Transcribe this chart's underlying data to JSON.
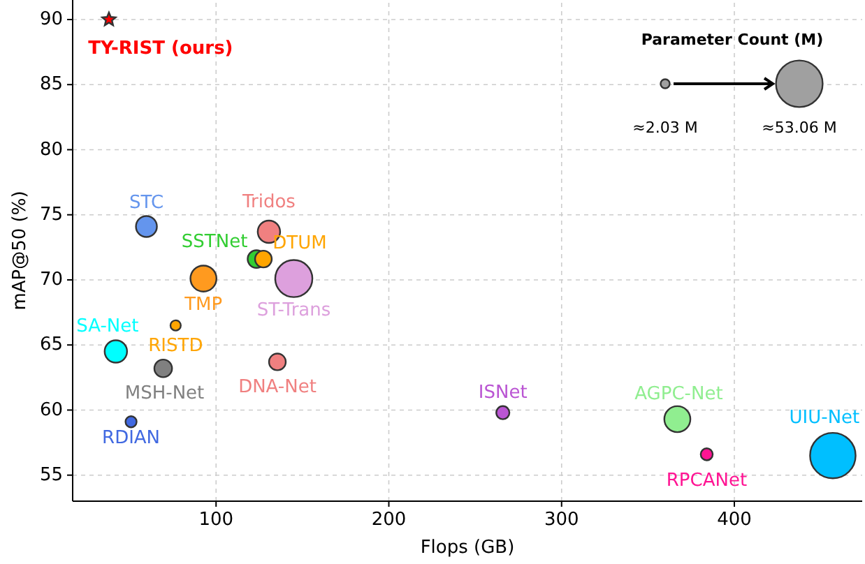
{
  "chart_data": {
    "type": "bubble",
    "xlabel": "Flops (GB)",
    "ylabel": "mAP@50 (%)",
    "legend_title": "Parameter Count (M)",
    "grid": true,
    "marker": "circle",
    "xlim": [
      17,
      474
    ],
    "xticks": [
      100,
      200,
      300,
      400
    ],
    "ylim": [
      53,
      91.5
    ],
    "yticks": [
      55,
      60,
      65,
      70,
      75,
      80,
      85,
      90
    ],
    "size_legend": [
      {
        "value": 2.03,
        "label": "≈2.03 M"
      },
      {
        "value": 53.06,
        "label": "≈53.06 M"
      }
    ],
    "series": [
      {
        "name": "TY-RIST (ours)",
        "color": "#ff0000",
        "marker": "star",
        "x": [
          38
        ],
        "values": [
          90
        ],
        "sizes": [
          2.03
        ]
      },
      {
        "name": "STC",
        "color": "#6495ed",
        "x": [
          59.7
        ],
        "values": [
          74.1
        ],
        "sizes": [
          10.7
        ]
      },
      {
        "name": "Tridos",
        "color": "#f08080",
        "x": [
          130.6
        ],
        "values": [
          73.7
        ],
        "sizes": [
          12.2
        ]
      },
      {
        "name": "SSTNet",
        "color": "#32cd32",
        "x": [
          123.4
        ],
        "values": [
          71.6
        ],
        "sizes": [
          7.6
        ]
      },
      {
        "name": "DTUM",
        "color": "#ffa500",
        "x": [
          127.4
        ],
        "values": [
          71.6
        ],
        "sizes": [
          6.8
        ]
      },
      {
        "name": "TMP",
        "color": "#ff9a1f",
        "x": [
          92.7
        ],
        "values": [
          70.1
        ],
        "sizes": [
          16.5
        ]
      },
      {
        "name": "ST-Trans",
        "color": "#dda0dd",
        "x": [
          145
        ],
        "values": [
          70.1
        ],
        "sizes": [
          33.6
        ]
      },
      {
        "name": "RISTD",
        "color": "#ffa500",
        "x": [
          76.6
        ],
        "values": [
          66.5
        ],
        "sizes": [
          2.6
        ]
      },
      {
        "name": "SA-Net",
        "color": "#00ffff",
        "x": [
          42
        ],
        "values": [
          64.5
        ],
        "sizes": [
          12.2
        ]
      },
      {
        "name": "MSH-Net",
        "color": "#808080",
        "x": [
          69.4
        ],
        "values": [
          63.2
        ],
        "sizes": [
          7.6
        ]
      },
      {
        "name": "DNA-Net",
        "color": "#f08080",
        "x": [
          135.5
        ],
        "values": [
          63.7
        ],
        "sizes": [
          6.8
        ]
      },
      {
        "name": "RDIAN",
        "color": "#4169e1",
        "x": [
          50.8
        ],
        "values": [
          59.1
        ],
        "sizes": [
          3.0
        ]
      },
      {
        "name": "ISNet",
        "color": "#ba55d3",
        "x": [
          266
        ],
        "values": [
          59.8
        ],
        "sizes": [
          4.2
        ]
      },
      {
        "name": "AGPC-Net",
        "color": "#90ee90",
        "x": [
          367
        ],
        "values": [
          59.3
        ],
        "sizes": [
          16.5
        ]
      },
      {
        "name": "RPCANet",
        "color": "#ff1493",
        "x": [
          384
        ],
        "values": [
          56.6
        ],
        "sizes": [
          3.5
        ]
      },
      {
        "name": "UIU-Net",
        "color": "#00bfff",
        "x": [
          457
        ],
        "values": [
          56.5
        ],
        "sizes": [
          50.5
        ]
      }
    ]
  }
}
